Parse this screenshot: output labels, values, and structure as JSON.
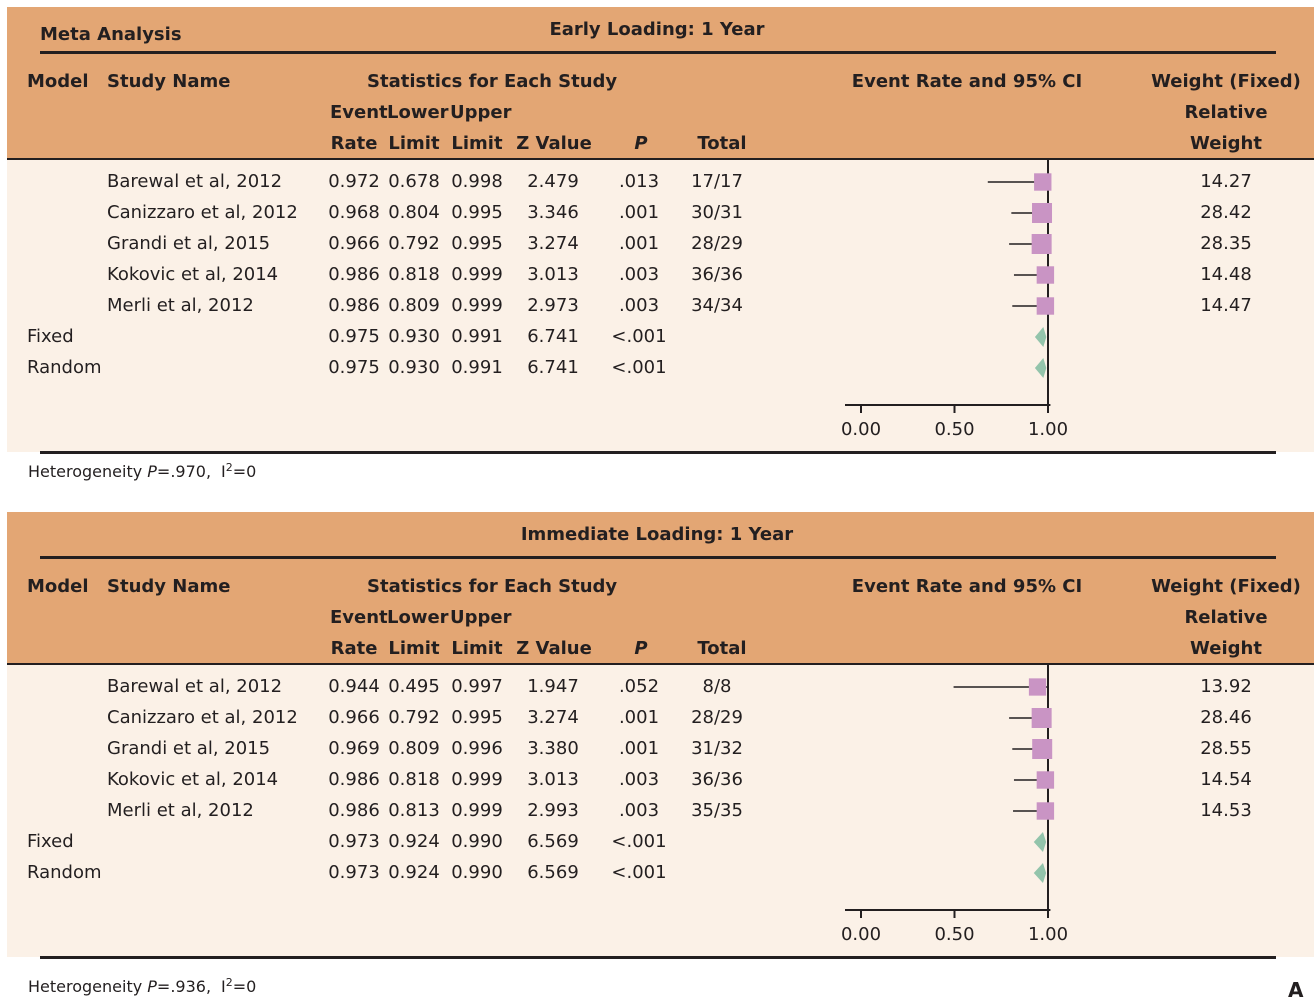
{
  "colors": {
    "header_bg": "#e3a674",
    "body_bg": "#fbf1e7",
    "study_marker": "#c994c4",
    "summary_marker": "#93c4ab"
  },
  "headers": {
    "model": "Model",
    "study_name": "Study Name",
    "stats_group": "Statistics for Each Study",
    "event": "Event",
    "lower": "Lower",
    "upper": "Upper",
    "rate": "Rate",
    "limit_lower": "Limit",
    "limit_upper": "Limit",
    "z_value": "Z Value",
    "p": "P",
    "total": "Total",
    "plot_title": "Event Rate and 95% CI",
    "weight_title": "Weight (Fixed)",
    "relative": "Relative",
    "weight": "Weight"
  },
  "panels": [
    {
      "meta_label": "Meta Analysis",
      "title": "Early Loading: 1 Year",
      "heterogeneity": {
        "prefix": "Heterogeneity ",
        "p_label": "P",
        "p_value": "=.970,",
        "i_label": "I",
        "i_sup": "2",
        "i_value": "=0"
      },
      "rows": [
        {
          "model": "",
          "study": "Barewal et al, 2012",
          "rate": "0.972",
          "lower": "0.678",
          "upper": "0.998",
          "z": "2.479",
          "p": ".013",
          "total": "17/17",
          "weight": "14.27"
        },
        {
          "model": "",
          "study": "Canizzaro et al, 2012",
          "rate": "0.968",
          "lower": "0.804",
          "upper": "0.995",
          "z": "3.346",
          "p": ".001",
          "total": "30/31",
          "weight": "28.42"
        },
        {
          "model": "",
          "study": "Grandi et al, 2015",
          "rate": "0.966",
          "lower": "0.792",
          "upper": "0.995",
          "z": "3.274",
          "p": ".001",
          "total": "28/29",
          "weight": "28.35"
        },
        {
          "model": "",
          "study": "Kokovic et al, 2014",
          "rate": "0.986",
          "lower": "0.818",
          "upper": "0.999",
          "z": "3.013",
          "p": ".003",
          "total": "36/36",
          "weight": "14.48"
        },
        {
          "model": "",
          "study": "Merli et al, 2012",
          "rate": "0.986",
          "lower": "0.809",
          "upper": "0.999",
          "z": "2.973",
          "p": ".003",
          "total": "34/34",
          "weight": "14.47"
        },
        {
          "model": "Fixed",
          "study": "",
          "rate": "0.975",
          "lower": "0.930",
          "upper": "0.991",
          "z": "6.741",
          "p": "<.001",
          "total": "",
          "weight": ""
        },
        {
          "model": "Random",
          "study": "",
          "rate": "0.975",
          "lower": "0.930",
          "upper": "0.991",
          "z": "6.741",
          "p": "<.001",
          "total": "",
          "weight": ""
        }
      ]
    },
    {
      "meta_label": "",
      "title": "Immediate Loading: 1 Year",
      "heterogeneity": {
        "prefix": "Heterogeneity ",
        "p_label": "P",
        "p_value": "=.936,",
        "i_label": "I",
        "i_sup": "2",
        "i_value": "=0"
      },
      "rows": [
        {
          "model": "",
          "study": "Barewal et al, 2012",
          "rate": "0.944",
          "lower": "0.495",
          "upper": "0.997",
          "z": "1.947",
          "p": ".052",
          "total": "8/8",
          "weight": "13.92"
        },
        {
          "model": "",
          "study": "Canizzaro et al, 2012",
          "rate": "0.966",
          "lower": "0.792",
          "upper": "0.995",
          "z": "3.274",
          "p": ".001",
          "total": "28/29",
          "weight": "28.46"
        },
        {
          "model": "",
          "study": "Grandi et al, 2015",
          "rate": "0.969",
          "lower": "0.809",
          "upper": "0.996",
          "z": "3.380",
          "p": ".001",
          "total": "31/32",
          "weight": "28.55"
        },
        {
          "model": "",
          "study": "Kokovic et al, 2014",
          "rate": "0.986",
          "lower": "0.818",
          "upper": "0.999",
          "z": "3.013",
          "p": ".003",
          "total": "36/36",
          "weight": "14.54"
        },
        {
          "model": "",
          "study": "Merli et al, 2012",
          "rate": "0.986",
          "lower": "0.813",
          "upper": "0.999",
          "z": "2.993",
          "p": ".003",
          "total": "35/35",
          "weight": "14.53"
        },
        {
          "model": "Fixed",
          "study": "",
          "rate": "0.973",
          "lower": "0.924",
          "upper": "0.990",
          "z": "6.569",
          "p": "<.001",
          "total": "",
          "weight": ""
        },
        {
          "model": "Random",
          "study": "",
          "rate": "0.973",
          "lower": "0.924",
          "upper": "0.990",
          "z": "6.569",
          "p": "<.001",
          "total": "",
          "weight": ""
        }
      ]
    }
  ],
  "figure_label": "A",
  "chart_data": [
    {
      "type": "forest",
      "title": "Early Loading: 1 Year",
      "xlim": [
        0,
        1.2
      ],
      "xticks": [
        0.0,
        0.5,
        1.0
      ],
      "xtick_labels": [
        "0.00",
        "0.50",
        "1.00"
      ],
      "studies": [
        {
          "label": "Barewal et al, 2012",
          "estimate": 0.972,
          "lower": 0.678,
          "upper": 0.998,
          "weight": 14.27
        },
        {
          "label": "Canizzaro et al, 2012",
          "estimate": 0.968,
          "lower": 0.804,
          "upper": 0.995,
          "weight": 28.42
        },
        {
          "label": "Grandi et al, 2015",
          "estimate": 0.966,
          "lower": 0.792,
          "upper": 0.995,
          "weight": 28.35
        },
        {
          "label": "Kokovic et al, 2014",
          "estimate": 0.986,
          "lower": 0.818,
          "upper": 0.999,
          "weight": 14.48
        },
        {
          "label": "Merli et al, 2012",
          "estimate": 0.986,
          "lower": 0.809,
          "upper": 0.999,
          "weight": 14.47
        }
      ],
      "summaries": [
        {
          "label": "Fixed",
          "estimate": 0.975,
          "lower": 0.93,
          "upper": 0.991
        },
        {
          "label": "Random",
          "estimate": 0.975,
          "lower": 0.93,
          "upper": 0.991
        }
      ]
    },
    {
      "type": "forest",
      "title": "Immediate Loading: 1 Year",
      "xlim": [
        0,
        1.2
      ],
      "xticks": [
        0.0,
        0.5,
        1.0
      ],
      "xtick_labels": [
        "0.00",
        "0.50",
        "1.00"
      ],
      "studies": [
        {
          "label": "Barewal et al, 2012",
          "estimate": 0.944,
          "lower": 0.495,
          "upper": 0.997,
          "weight": 13.92
        },
        {
          "label": "Canizzaro et al, 2012",
          "estimate": 0.966,
          "lower": 0.792,
          "upper": 0.995,
          "weight": 28.46
        },
        {
          "label": "Grandi et al, 2015",
          "estimate": 0.969,
          "lower": 0.809,
          "upper": 0.996,
          "weight": 28.55
        },
        {
          "label": "Kokovic et al, 2014",
          "estimate": 0.986,
          "lower": 0.818,
          "upper": 0.999,
          "weight": 14.54
        },
        {
          "label": "Merli et al, 2012",
          "estimate": 0.986,
          "lower": 0.813,
          "upper": 0.999,
          "weight": 14.53
        }
      ],
      "summaries": [
        {
          "label": "Fixed",
          "estimate": 0.973,
          "lower": 0.924,
          "upper": 0.99
        },
        {
          "label": "Random",
          "estimate": 0.973,
          "lower": 0.924,
          "upper": 0.99
        }
      ]
    }
  ]
}
